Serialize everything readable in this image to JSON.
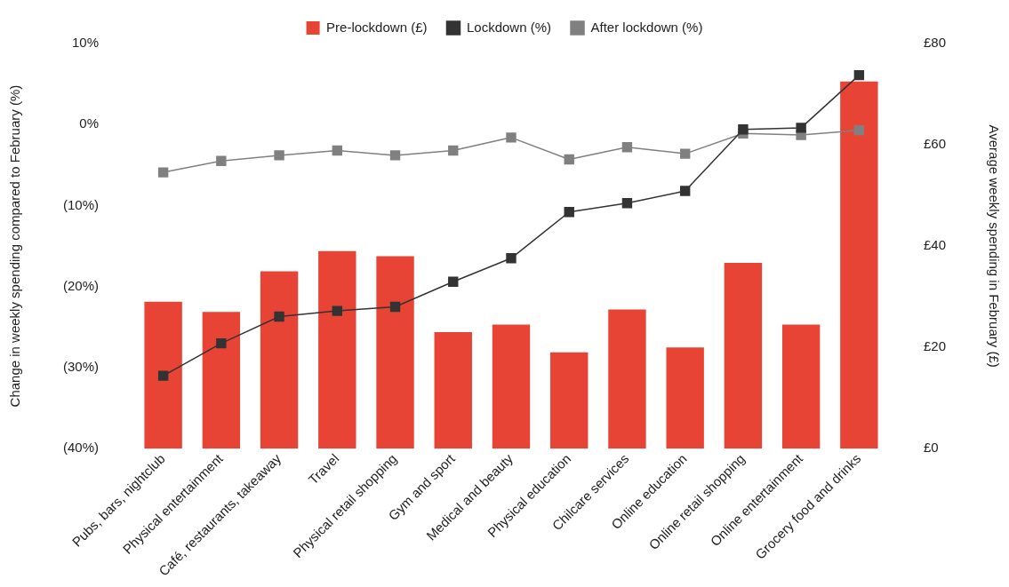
{
  "chart_data": {
    "type": "bar",
    "categories": [
      "Pubs, bars, nightclub",
      "Physical entertainment",
      "Café, restaurants, takeaway",
      "Travel",
      "Physical retail shopping",
      "Gym and sport",
      "Medical and beauty",
      "Physical education",
      "Chilcare services",
      "Online education",
      "Online retail shopping",
      "Online entertainment",
      "Grocery food and drinks"
    ],
    "series": [
      {
        "name": "Pre-lockdown (£)",
        "axis": "y2",
        "color": "#e84435",
        "values": [
          29,
          27,
          35,
          39,
          38,
          23,
          24.5,
          19,
          27.5,
          20,
          36.7,
          24.5,
          72.5
        ]
      },
      {
        "name": "Lockdown (%)",
        "type": "line",
        "color": "#333333",
        "values": [
          -31,
          -27,
          -23.7,
          -23,
          -22.5,
          -19.4,
          -16.5,
          -10.8,
          -9.7,
          -8.2,
          -0.6,
          -0.4,
          6.1
        ]
      },
      {
        "name": "After lockdown (%)",
        "type": "line",
        "color": "#808080",
        "values": [
          -5.9,
          -4.5,
          -3.8,
          -3.2,
          -3.8,
          -3.2,
          -1.6,
          -4.3,
          -2.8,
          -3.6,
          -1.1,
          -1.3,
          -0.7
        ]
      }
    ],
    "ylabel": "Change in weekly spending compared to February (%)",
    "y2label": "Average weekly spending in February (£)",
    "ylim": [
      -40,
      10
    ],
    "yticks": [
      {
        "value": -40,
        "label": "(40%)"
      },
      {
        "value": -30,
        "label": "(30%)"
      },
      {
        "value": -20,
        "label": "(20%)"
      },
      {
        "value": -10,
        "label": "(10%)"
      },
      {
        "value": 0,
        "label": "0%"
      },
      {
        "value": 10,
        "label": "10%"
      }
    ],
    "y2lim": [
      0,
      80
    ],
    "y2ticks": [
      {
        "value": 0,
        "label": "£0"
      },
      {
        "value": 20,
        "label": "£20"
      },
      {
        "value": 40,
        "label": "£40"
      },
      {
        "value": 60,
        "label": "£60"
      },
      {
        "value": 80,
        "label": "£80"
      }
    ],
    "legend": "top",
    "marker": "square",
    "line_style": "solid"
  }
}
